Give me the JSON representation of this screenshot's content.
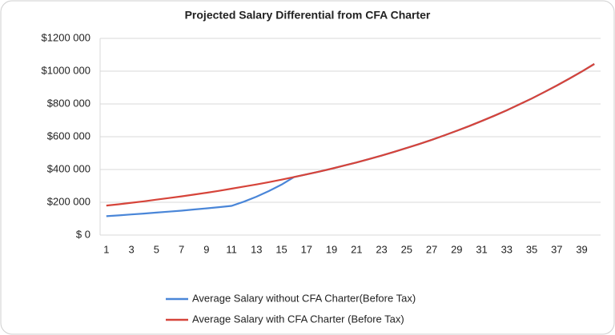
{
  "chart_data": {
    "type": "line",
    "title": "Projected Salary Differential from CFA Charter",
    "categories": [
      1,
      null,
      3,
      null,
      5,
      null,
      7,
      null,
      9,
      null,
      11,
      null,
      13,
      null,
      15,
      null,
      17,
      null,
      19,
      null,
      21,
      null,
      23,
      null,
      25,
      null,
      27,
      null,
      29,
      null,
      31,
      null,
      33,
      null,
      35,
      null,
      37,
      null,
      39,
      null
    ],
    "series": [
      {
        "name": "Average Salary without CFA Charter(Before Tax)",
        "color": "#4a86d8",
        "values": [
          115000,
          120000,
          126000,
          131000,
          137000,
          143000,
          149000,
          156000,
          163000,
          170000,
          178000,
          204000,
          234000,
          269000,
          308000,
          354000,
          370000,
          387000,
          405000,
          424000,
          443000,
          464000,
          485000,
          508000,
          531000,
          555000,
          581000,
          608000,
          636000,
          665000,
          696000,
          728000,
          761000,
          797000,
          833000,
          872000,
          912000,
          954000,
          998000,
          1044000
        ]
      },
      {
        "name": "Average Salary with CFA Charter (Before Tax)",
        "color": "#d6443a",
        "values": [
          180000,
          188000,
          197000,
          206000,
          216000,
          226000,
          236000,
          247000,
          258000,
          270000,
          283000,
          296000,
          309000,
          323000,
          338000,
          354000,
          370000,
          387000,
          405000,
          424000,
          443000,
          464000,
          485000,
          508000,
          531000,
          555000,
          581000,
          608000,
          636000,
          665000,
          696000,
          728000,
          761000,
          797000,
          833000,
          872000,
          912000,
          954000,
          998000,
          1044000
        ]
      }
    ],
    "ylim": [
      0,
      1200000
    ],
    "yticks": [
      {
        "value": 0,
        "label": "$ 0"
      },
      {
        "value": 200000,
        "label": "$200 000"
      },
      {
        "value": 400000,
        "label": "$400 000"
      },
      {
        "value": 600000,
        "label": "$600 000"
      },
      {
        "value": 800000,
        "label": "$800 000"
      },
      {
        "value": 1000000,
        "label": "$1000 000"
      },
      {
        "value": 1200000,
        "label": "$1200 000"
      }
    ],
    "grid": true
  }
}
